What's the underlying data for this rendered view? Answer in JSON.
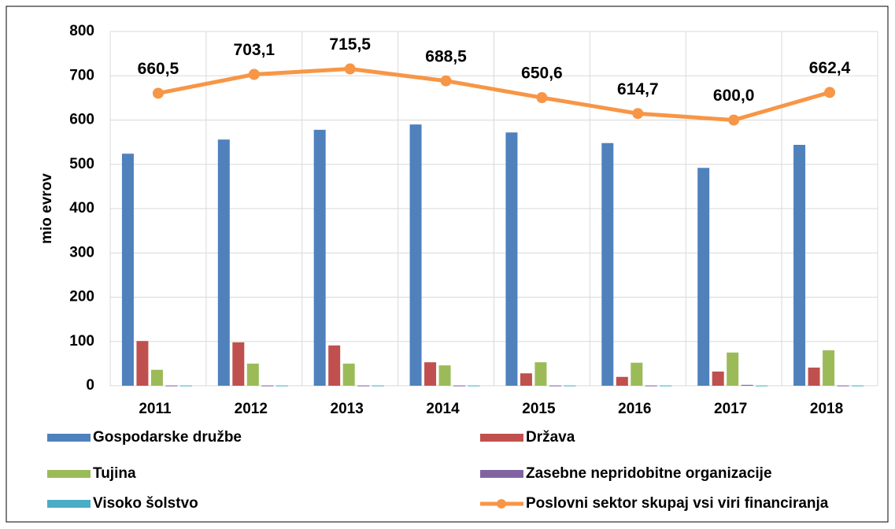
{
  "chart_data": {
    "type": "bar",
    "y_label": "mio evrov",
    "categories": [
      "2011",
      "2012",
      "2013",
      "2014",
      "2015",
      "2016",
      "2017",
      "2018"
    ],
    "series": [
      {
        "name": "Gospodarske družbe",
        "color": "#4f81bd",
        "values": [
          524,
          556,
          578,
          590,
          572,
          548,
          492,
          544
        ]
      },
      {
        "name": "Država",
        "color": "#c0504d",
        "values": [
          101,
          98,
          91,
          53,
          28,
          20,
          32,
          41
        ]
      },
      {
        "name": "Tujina",
        "color": "#9bbb59",
        "values": [
          36,
          50,
          50,
          46,
          53,
          52,
          75,
          80
        ]
      },
      {
        "name": "Zasebne nepridobitne organizacije",
        "color": "#8064a2",
        "values": [
          0.5,
          0.5,
          0.5,
          0.5,
          0.5,
          0.5,
          2,
          0.5
        ]
      },
      {
        "name": "Visoko šolstvo",
        "color": "#4bacc6",
        "values": [
          0.5,
          0.5,
          0.5,
          0.5,
          0.5,
          0.5,
          0.5,
          0.5
        ]
      },
      {
        "name": "Poslovni sektor skupaj vsi viri financiranja",
        "color": "#f79646",
        "type": "line",
        "values": [
          660.5,
          703.1,
          715.5,
          688.5,
          650.6,
          614.7,
          600.0,
          662.4
        ],
        "value_labels": [
          "660,5",
          "703,1",
          "715,5",
          "688,5",
          "650,6",
          "614,7",
          "600,0",
          "662,4"
        ]
      }
    ],
    "ylim": [
      0,
      800
    ],
    "yticks": [
      0,
      100,
      200,
      300,
      400,
      500,
      600,
      700,
      800
    ],
    "grid": true
  }
}
